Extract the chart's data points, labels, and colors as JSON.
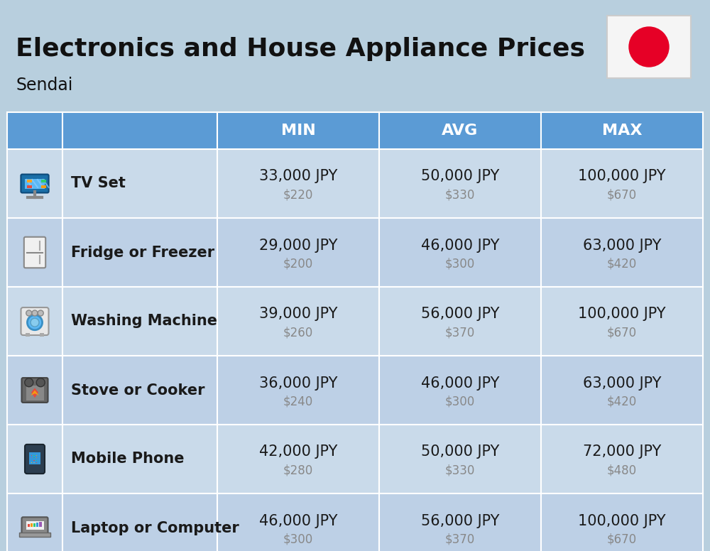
{
  "title": "Electronics and House Appliance Prices",
  "subtitle": "Sendai",
  "background_color": "#b8cfde",
  "header_color": "#5b9bd5",
  "header_text_color": "#ffffff",
  "cell_text_color": "#1a1a1a",
  "usd_text_color": "#888888",
  "columns": [
    "MIN",
    "AVG",
    "MAX"
  ],
  "rows": [
    {
      "name": "TV Set",
      "min_jpy": "33,000 JPY",
      "min_usd": "$220",
      "avg_jpy": "50,000 JPY",
      "avg_usd": "$330",
      "max_jpy": "100,000 JPY",
      "max_usd": "$670"
    },
    {
      "name": "Fridge or Freezer",
      "min_jpy": "29,000 JPY",
      "min_usd": "$200",
      "avg_jpy": "46,000 JPY",
      "avg_usd": "$300",
      "max_jpy": "63,000 JPY",
      "max_usd": "$420"
    },
    {
      "name": "Washing Machine",
      "min_jpy": "39,000 JPY",
      "min_usd": "$260",
      "avg_jpy": "56,000 JPY",
      "avg_usd": "$370",
      "max_jpy": "100,000 JPY",
      "max_usd": "$670"
    },
    {
      "name": "Stove or Cooker",
      "min_jpy": "36,000 JPY",
      "min_usd": "$240",
      "avg_jpy": "46,000 JPY",
      "avg_usd": "$300",
      "max_jpy": "63,000 JPY",
      "max_usd": "$420"
    },
    {
      "name": "Mobile Phone",
      "min_jpy": "42,000 JPY",
      "min_usd": "$280",
      "avg_jpy": "50,000 JPY",
      "avg_usd": "$330",
      "max_jpy": "72,000 JPY",
      "max_usd": "$480"
    },
    {
      "name": "Laptop or Computer",
      "min_jpy": "46,000 JPY",
      "min_usd": "$300",
      "avg_jpy": "56,000 JPY",
      "avg_usd": "$370",
      "max_jpy": "100,000 JPY",
      "max_usd": "$670"
    }
  ],
  "title_fontsize": 26,
  "subtitle_fontsize": 17,
  "header_fontsize": 16,
  "item_name_fontsize": 15,
  "jpy_fontsize": 15,
  "usd_fontsize": 12,
  "row_bg_colors": [
    "#c9daea",
    "#bdd0e6"
  ],
  "flag_red": "#e60026"
}
